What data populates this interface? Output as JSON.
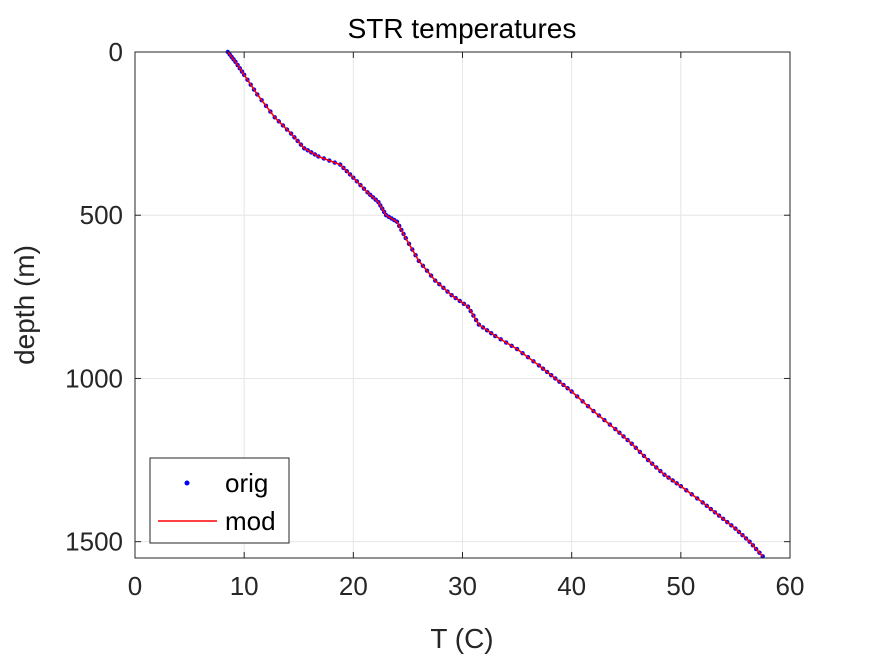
{
  "chart_data": {
    "type": "line",
    "title": "STR temperatures",
    "xlabel": "T (C)",
    "ylabel": "depth (m)",
    "xlim": [
      0,
      60
    ],
    "ylim": [
      0,
      1550
    ],
    "y_reversed": true,
    "grid": true,
    "legend_position": "bottom-left",
    "x_ticks": [
      0,
      10,
      20,
      30,
      40,
      50,
      60
    ],
    "x_tick_labels": [
      "0",
      "10",
      "20",
      "30",
      "40",
      "50",
      "60"
    ],
    "y_ticks": [
      0,
      500,
      1000,
      1500
    ],
    "y_tick_labels": [
      "0",
      "500",
      "1000",
      "1500"
    ],
    "series": [
      {
        "name": "orig",
        "style": "points",
        "color": "#0000ff",
        "temperature": [
          8.5,
          9.2,
          10.0,
          11.2,
          12.8,
          14.3,
          15.5,
          16.8,
          18.8,
          20.0,
          21.3,
          22.3,
          23.0,
          24.0,
          24.8,
          26.0,
          27.5,
          29.0,
          30.5,
          31.5,
          33.0,
          35.0,
          37.0,
          38.5,
          40.0,
          42.0,
          44.0,
          45.5,
          47.0,
          48.5,
          50.0,
          52.0,
          53.5,
          55.0,
          56.3,
          57.5
        ],
        "depth": [
          0,
          30,
          70,
          130,
          200,
          250,
          295,
          320,
          345,
          385,
          430,
          460,
          500,
          520,
          570,
          640,
          700,
          745,
          780,
          835,
          870,
          910,
          960,
          1000,
          1040,
          1100,
          1155,
          1200,
          1250,
          1295,
          1330,
          1380,
          1420,
          1460,
          1500,
          1545
        ]
      },
      {
        "name": "mod",
        "style": "line",
        "color": "#ff0000",
        "temperature": [
          8.5,
          9.2,
          10.0,
          11.2,
          12.8,
          14.3,
          15.5,
          16.8,
          18.8,
          20.0,
          21.3,
          22.3,
          23.0,
          24.0,
          24.8,
          26.0,
          27.5,
          29.0,
          30.5,
          31.5,
          33.0,
          35.0,
          37.0,
          38.5,
          40.0,
          42.0,
          44.0,
          45.5,
          47.0,
          48.5,
          50.0,
          52.0,
          53.5,
          55.0,
          56.3,
          57.5
        ],
        "depth": [
          0,
          30,
          70,
          130,
          200,
          250,
          295,
          320,
          345,
          385,
          430,
          460,
          500,
          520,
          570,
          640,
          700,
          745,
          780,
          835,
          870,
          910,
          960,
          1000,
          1040,
          1100,
          1155,
          1200,
          1250,
          1295,
          1330,
          1380,
          1420,
          1460,
          1500,
          1545
        ]
      }
    ],
    "legend": [
      {
        "label": "orig",
        "color": "#0000ff",
        "marker": "point"
      },
      {
        "label": "mod",
        "color": "#ff0000",
        "marker": "line"
      }
    ]
  }
}
